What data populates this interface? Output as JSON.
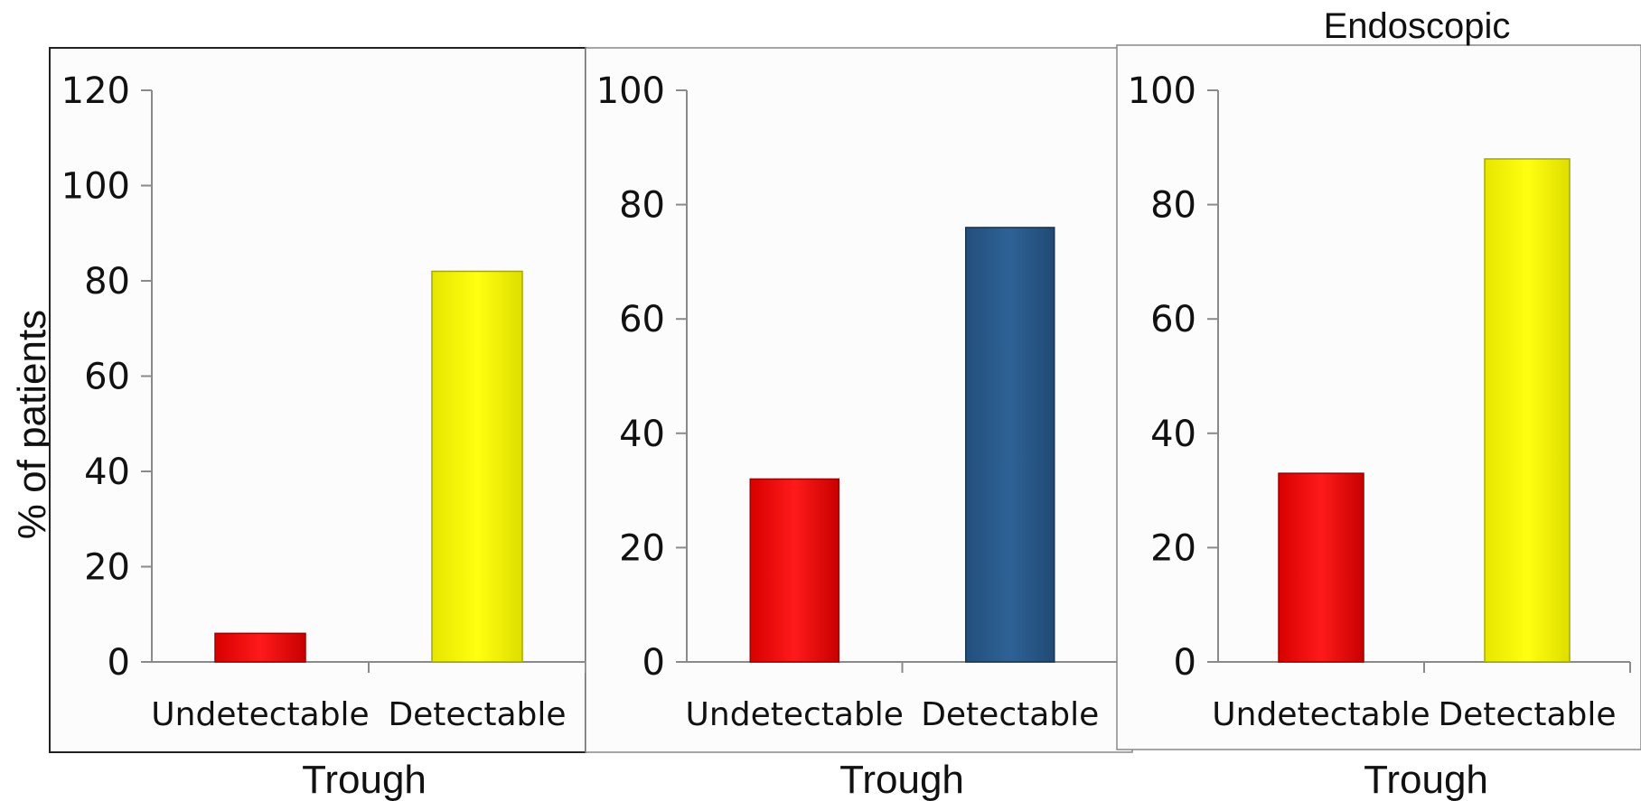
{
  "ylabel": "% of patients",
  "colors": {
    "red": "#ff0a0a",
    "yellow": "#ffff00",
    "blue": "#2a5a8c"
  },
  "chart_data": [
    {
      "type": "bar",
      "title": "",
      "xlabel": "Trough",
      "categories": [
        "Undetectable",
        "Detectable"
      ],
      "values": [
        6,
        82
      ],
      "bar_colors": [
        "#ff0a0a",
        "#ffff00"
      ],
      "ylim": [
        0,
        120
      ],
      "yticks": [
        "0",
        "20",
        "40",
        "60",
        "80",
        "100",
        "120"
      ],
      "grid": false
    },
    {
      "type": "bar",
      "title": "",
      "xlabel": "Trough",
      "categories": [
        "Undetectable",
        "Detectable"
      ],
      "values": [
        32,
        76
      ],
      "bar_colors": [
        "#ff0a0a",
        "#2a5a8c"
      ],
      "ylim": [
        0,
        100
      ],
      "yticks": [
        "0",
        "20",
        "40",
        "60",
        "80",
        "100"
      ],
      "grid": false
    },
    {
      "type": "bar",
      "title": "Endoscopic",
      "xlabel": "Trough",
      "categories": [
        "Undetectable",
        "Detectable"
      ],
      "values": [
        33,
        88
      ],
      "bar_colors": [
        "#ff0a0a",
        "#ffff00"
      ],
      "ylim": [
        0,
        100
      ],
      "yticks": [
        "0",
        "20",
        "40",
        "60",
        "80",
        "100"
      ],
      "grid": false
    }
  ]
}
